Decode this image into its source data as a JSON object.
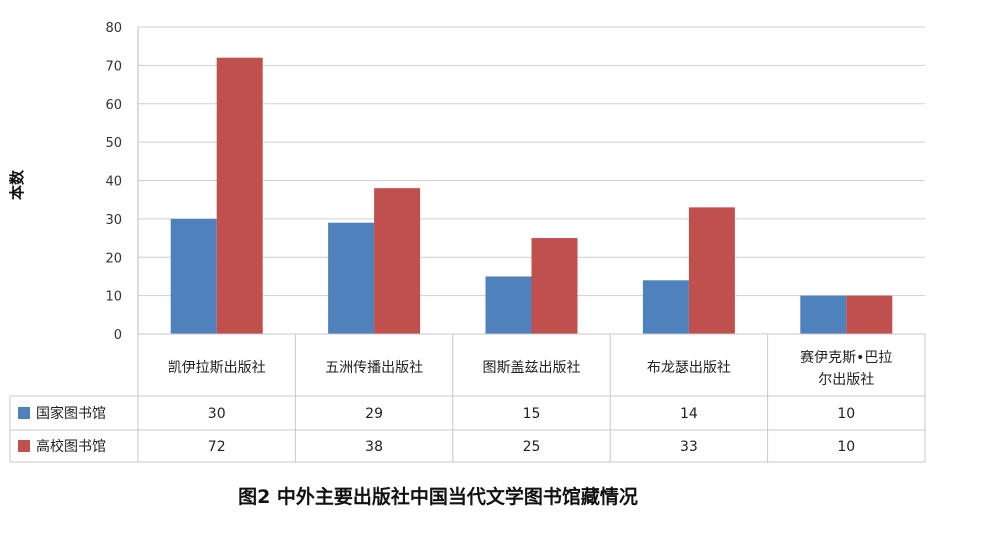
{
  "chart_data": {
    "type": "bar",
    "title": "图2 中外主要出版社中国当代文学图书馆藏情况",
    "ylabel": "本数",
    "ylim": [
      0,
      80
    ],
    "yticks": [
      0,
      10,
      20,
      30,
      40,
      50,
      60,
      70,
      80
    ],
    "grid": true,
    "legend": "data-table-left",
    "categories": [
      [
        "凯伊拉斯出版社"
      ],
      [
        "五洲传播出版社"
      ],
      [
        "图斯盖兹出版社"
      ],
      [
        "布龙瑟出版社"
      ],
      [
        "赛伊克斯•巴拉",
        "尔出版社"
      ]
    ],
    "series": [
      {
        "name": "国家图书馆",
        "color": "#4f81bd",
        "values": [
          30,
          29,
          15,
          14,
          10
        ]
      },
      {
        "name": "高校图书馆",
        "color": "#c0504d",
        "values": [
          72,
          38,
          25,
          33,
          10
        ]
      }
    ]
  }
}
